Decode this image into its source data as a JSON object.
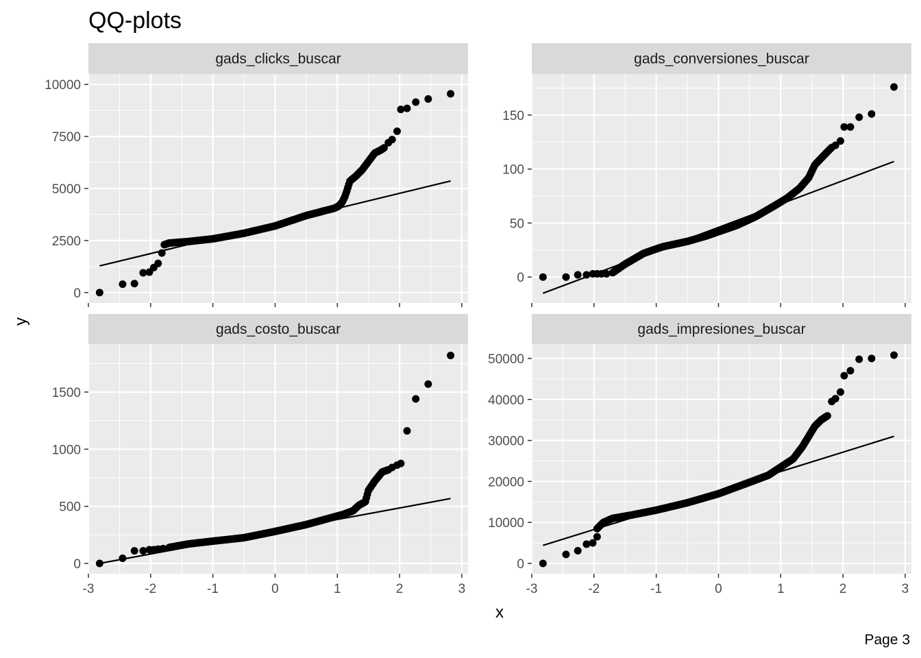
{
  "page": {
    "title": "QQ-plots",
    "caption": "Page 3",
    "colors": {
      "panel_background": "#ebebeb",
      "strip_background": "#d9d9d9",
      "gridline": "#ffffff",
      "point": "#000000",
      "line": "#000000",
      "tick_text": "#4d4d4d"
    }
  },
  "chart_data": {
    "type": "scatter",
    "layout": "facet_wrap 2x2",
    "xlabel": "x",
    "ylabel": "y",
    "grid": true,
    "panels": [
      {
        "name": "gads_clicks_buscar",
        "xlim": [
          -3.0,
          3.1
        ],
        "ylim": [
          -500,
          10500
        ],
        "x_ticks": [
          -3,
          -2,
          -1,
          0,
          1,
          2,
          3
        ],
        "x_tick_labels": [
          "-3",
          "-2",
          "-1",
          "0",
          "1",
          "2",
          "3"
        ],
        "y_ticks": [
          0,
          2500,
          5000,
          7500,
          10000
        ],
        "y_tick_labels": [
          "0",
          "2500",
          "5000",
          "7500",
          "10000"
        ],
        "ref_line": [
          [
            -2.82,
            1280
          ],
          [
            2.82,
            5360
          ]
        ],
        "quantile_curve": [
          [
            -1.78,
            2300
          ],
          [
            -1.7,
            2380
          ],
          [
            -1.4,
            2450
          ],
          [
            -1.0,
            2580
          ],
          [
            -0.5,
            2850
          ],
          [
            0.0,
            3200
          ],
          [
            0.5,
            3700
          ],
          [
            0.95,
            4050
          ],
          [
            1.02,
            4150
          ],
          [
            1.08,
            4350
          ],
          [
            1.12,
            4600
          ],
          [
            1.16,
            4950
          ],
          [
            1.2,
            5350
          ],
          [
            1.3,
            5600
          ],
          [
            1.4,
            5900
          ],
          [
            1.5,
            6300
          ],
          [
            1.6,
            6700
          ],
          [
            1.7,
            6850
          ],
          [
            1.75,
            6950
          ]
        ],
        "points": [
          [
            -2.82,
            0
          ],
          [
            -2.45,
            400
          ],
          [
            -2.26,
            430
          ],
          [
            -2.12,
            950
          ],
          [
            -2.02,
            980
          ],
          [
            -1.95,
            1200
          ],
          [
            -1.88,
            1400
          ],
          [
            -1.82,
            1900
          ],
          [
            1.82,
            7200
          ],
          [
            1.88,
            7350
          ],
          [
            1.96,
            7750
          ],
          [
            2.02,
            8800
          ],
          [
            2.12,
            8850
          ],
          [
            2.26,
            9150
          ],
          [
            2.46,
            9300
          ],
          [
            2.82,
            9550
          ]
        ]
      },
      {
        "name": "gads_conversiones_buscar",
        "xlim": [
          -3.0,
          3.1
        ],
        "ylim": [
          -24,
          188
        ],
        "x_ticks": [
          -3,
          -2,
          -1,
          0,
          1,
          2,
          3
        ],
        "x_tick_labels": [
          "-3",
          "-2",
          "-1",
          "0",
          "1",
          "2",
          "3"
        ],
        "y_ticks": [
          0,
          50,
          100,
          150
        ],
        "y_tick_labels": [
          "0",
          "50",
          "100",
          "150"
        ],
        "ref_line": [
          [
            -2.82,
            -15
          ],
          [
            2.82,
            107
          ]
        ],
        "quantile_curve": [
          [
            -1.7,
            4
          ],
          [
            -1.5,
            12
          ],
          [
            -1.2,
            22
          ],
          [
            -0.9,
            28
          ],
          [
            -0.5,
            33
          ],
          [
            -0.2,
            38
          ],
          [
            0.0,
            42
          ],
          [
            0.3,
            48
          ],
          [
            0.6,
            56
          ],
          [
            0.9,
            66
          ],
          [
            1.1,
            73
          ],
          [
            1.3,
            82
          ],
          [
            1.45,
            92
          ],
          [
            1.55,
            104
          ],
          [
            1.65,
            110
          ],
          [
            1.75,
            116
          ],
          [
            1.82,
            120
          ]
        ],
        "points": [
          [
            -2.82,
            0
          ],
          [
            -2.45,
            0
          ],
          [
            -2.26,
            2
          ],
          [
            -2.12,
            2
          ],
          [
            -2.02,
            3
          ],
          [
            -1.95,
            3
          ],
          [
            -1.88,
            3
          ],
          [
            -1.8,
            3
          ],
          [
            1.88,
            122
          ],
          [
            1.96,
            126
          ],
          [
            2.02,
            139
          ],
          [
            2.12,
            139
          ],
          [
            2.26,
            148
          ],
          [
            2.46,
            151
          ],
          [
            2.82,
            176
          ]
        ]
      },
      {
        "name": "gads_costo_buscar",
        "xlim": [
          -3.0,
          3.1
        ],
        "ylim": [
          -90,
          1920
        ],
        "x_ticks": [
          -3,
          -2,
          -1,
          0,
          1,
          2,
          3
        ],
        "x_tick_labels": [
          "-3",
          "-2",
          "-1",
          "0",
          "1",
          "2",
          "3"
        ],
        "y_ticks": [
          0,
          500,
          1000,
          1500
        ],
        "y_tick_labels": [
          "0",
          "500",
          "1000",
          "1500"
        ],
        "ref_line": [
          [
            -2.82,
            0
          ],
          [
            2.82,
            568
          ]
        ],
        "quantile_curve": [
          [
            -1.7,
            140
          ],
          [
            -1.4,
            170
          ],
          [
            -1.0,
            195
          ],
          [
            -0.5,
            225
          ],
          [
            0.0,
            280
          ],
          [
            0.5,
            340
          ],
          [
            0.9,
            400
          ],
          [
            1.1,
            430
          ],
          [
            1.25,
            460
          ],
          [
            1.35,
            510
          ],
          [
            1.45,
            540
          ],
          [
            1.5,
            640
          ],
          [
            1.6,
            720
          ],
          [
            1.72,
            800
          ],
          [
            1.82,
            820
          ]
        ],
        "points": [
          [
            -2.82,
            0
          ],
          [
            -2.45,
            45
          ],
          [
            -2.26,
            110
          ],
          [
            -2.12,
            110
          ],
          [
            -2.02,
            120
          ],
          [
            -1.95,
            120
          ],
          [
            -1.88,
            125
          ],
          [
            -1.8,
            130
          ],
          [
            1.88,
            840
          ],
          [
            1.96,
            860
          ],
          [
            2.02,
            875
          ],
          [
            2.12,
            1160
          ],
          [
            2.26,
            1440
          ],
          [
            2.46,
            1570
          ],
          [
            2.82,
            1820
          ]
        ]
      },
      {
        "name": "gads_impresiones_buscar",
        "xlim": [
          -3.0,
          3.1
        ],
        "ylim": [
          -2500,
          53500
        ],
        "x_ticks": [
          -3,
          -2,
          -1,
          0,
          1,
          2,
          3
        ],
        "x_tick_labels": [
          "-3",
          "-2",
          "-1",
          "0",
          "1",
          "2",
          "3"
        ],
        "y_ticks": [
          0,
          10000,
          20000,
          30000,
          40000,
          50000
        ],
        "y_tick_labels": [
          "0",
          "10000",
          "20000",
          "30000",
          "40000",
          "50000"
        ],
        "ref_line": [
          [
            -2.82,
            4400
          ],
          [
            2.82,
            31000
          ]
        ],
        "quantile_curve": [
          [
            -1.95,
            8500
          ],
          [
            -1.85,
            10000
          ],
          [
            -1.7,
            11000
          ],
          [
            -1.4,
            11800
          ],
          [
            -1.0,
            13000
          ],
          [
            -0.5,
            14800
          ],
          [
            0.0,
            17000
          ],
          [
            0.5,
            19800
          ],
          [
            0.8,
            21500
          ],
          [
            1.0,
            23500
          ],
          [
            1.2,
            25500
          ],
          [
            1.35,
            28500
          ],
          [
            1.45,
            31000
          ],
          [
            1.55,
            33500
          ],
          [
            1.65,
            35000
          ],
          [
            1.75,
            36000
          ]
        ],
        "points": [
          [
            -2.82,
            0
          ],
          [
            -2.45,
            2200
          ],
          [
            -2.26,
            3100
          ],
          [
            -2.12,
            4700
          ],
          [
            -2.02,
            5000
          ],
          [
            -1.95,
            6500
          ],
          [
            1.82,
            39500
          ],
          [
            1.88,
            40200
          ],
          [
            1.96,
            41800
          ],
          [
            2.02,
            45800
          ],
          [
            2.12,
            47000
          ],
          [
            2.26,
            49800
          ],
          [
            2.46,
            50000
          ],
          [
            2.82,
            50800
          ]
        ]
      }
    ]
  }
}
